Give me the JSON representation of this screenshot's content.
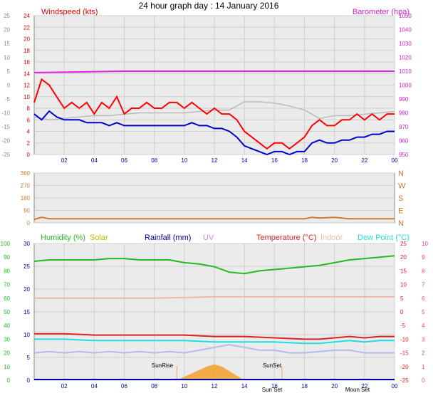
{
  "title": "24 hour graph day : 14 January 2016",
  "colors": {
    "wind_gust": "#ff0000",
    "wind_avg": "#cc1111",
    "wind_dir_trace": "#bbbbbb",
    "baro": "#e020e0",
    "wind_speed_blue": "#0000cc",
    "dir": "#d07830",
    "humidity": "#22bb22",
    "solar": "#c8b400",
    "rainfall": "#0000aa",
    "uv": "#e080d0",
    "temperature": "#dd2222",
    "indoor": "#f0b8a8",
    "dewpoint": "#22dddd",
    "sun_fill": "#f5a02a",
    "sun_marker": "#f0a070",
    "axis_green": "#20c020",
    "axis_pink": "#e040a0",
    "axis_blue": "#0000aa"
  },
  "chart_data": [
    {
      "type": "line",
      "panel": "wind",
      "left_label": "Windspeed (kts)",
      "right_label": "Barometer (hpa)",
      "x_ticks": [
        "02",
        "04",
        "06",
        "08",
        "10",
        "12",
        "14",
        "16",
        "18",
        "20",
        "22",
        "00"
      ],
      "x_range": [
        0,
        24
      ],
      "left_outer_ticks": [
        "25",
        "20",
        "15",
        "10",
        "5",
        "0",
        "-5",
        "-10",
        "-15",
        "-20",
        "-25"
      ],
      "left_outer_range": [
        -25,
        25
      ],
      "left_inner_ticks": [
        "24",
        "22",
        "20",
        "18",
        "16",
        "14",
        "12",
        "10",
        "8",
        "6",
        "4",
        "2",
        "0"
      ],
      "left_inner_range": [
        0,
        24
      ],
      "right_ticks": [
        "1050",
        "1040",
        "1030",
        "1020",
        "1010",
        "1000",
        "990",
        "980",
        "970",
        "960",
        "950"
      ],
      "right_range": [
        950,
        1050
      ],
      "series": [
        {
          "id": "dir_trace",
          "color_key": "wind_dir_trace",
          "x": [
            0,
            1,
            2,
            3,
            4,
            5,
            6,
            7,
            8,
            9,
            10,
            11,
            12,
            13,
            14,
            15,
            16,
            17,
            18,
            19,
            20,
            21,
            22,
            23,
            24
          ],
          "y": [
            -11.5,
            -12.5,
            -12,
            -11.5,
            -11,
            -11,
            -10.5,
            -10,
            -10,
            -10,
            -10,
            -9.5,
            -9,
            -9,
            -6,
            -6,
            -6.5,
            -7.5,
            -9,
            -12,
            -11,
            -11,
            -10.5,
            -10,
            -9.5
          ]
        },
        {
          "id": "gust",
          "color_key": "wind_gust",
          "x": [
            0,
            0.5,
            1,
            1.5,
            2,
            2.5,
            3,
            3.5,
            4,
            4.5,
            5,
            5.5,
            6,
            6.5,
            7,
            7.5,
            8,
            8.5,
            9,
            9.5,
            10,
            10.5,
            11,
            11.5,
            12,
            12.5,
            13,
            13.5,
            14,
            14.5,
            15,
            15.5,
            16,
            16.5,
            17,
            17.5,
            18,
            18.5,
            19,
            19.5,
            20,
            20.5,
            21,
            21.5,
            22,
            22.5,
            23,
            23.5,
            24
          ],
          "y": [
            9,
            13,
            12,
            10,
            8,
            9,
            8,
            9,
            7,
            9,
            8,
            10,
            7,
            8,
            8,
            9,
            8,
            8,
            9,
            9,
            8,
            9,
            8,
            7,
            8,
            7,
            7,
            6,
            4,
            3,
            2,
            1,
            2,
            2,
            1,
            2,
            3,
            5,
            6,
            5,
            5,
            6,
            6,
            7,
            6,
            7,
            6,
            7,
            7
          ]
        },
        {
          "id": "avg",
          "color_key": "wind_speed_blue",
          "x": [
            0,
            0.5,
            1,
            1.5,
            2,
            2.5,
            3,
            3.5,
            4,
            4.5,
            5,
            5.5,
            6,
            6.5,
            7,
            7.5,
            8,
            8.5,
            9,
            9.5,
            10,
            10.5,
            11,
            11.5,
            12,
            12.5,
            13,
            13.5,
            14,
            14.5,
            15,
            15.5,
            16,
            16.5,
            17,
            17.5,
            18,
            18.5,
            19,
            19.5,
            20,
            20.5,
            21,
            21.5,
            22,
            22.5,
            23,
            23.5,
            24
          ],
          "y": [
            7,
            6,
            7.5,
            6.5,
            6,
            6,
            6,
            5.5,
            5.5,
            5.5,
            5,
            5.5,
            5,
            5,
            5,
            5,
            5,
            5,
            5,
            5,
            5,
            5.5,
            5,
            5,
            4.5,
            4.5,
            4,
            3,
            1.5,
            1,
            0.5,
            0,
            0.5,
            0.5,
            0,
            0.5,
            0.5,
            2,
            2.5,
            2,
            2,
            2.5,
            2.5,
            3,
            3,
            3.5,
            3.5,
            4,
            4
          ]
        },
        {
          "id": "baro",
          "color_key": "baro",
          "x": [
            0,
            3,
            6,
            9,
            12,
            15,
            18,
            21,
            24
          ],
          "y": [
            1009,
            1009.5,
            1010,
            1010,
            1010,
            1010,
            1010,
            1010,
            1010
          ]
        }
      ]
    },
    {
      "type": "line",
      "panel": "direction",
      "x_ticks": [],
      "x_range": [
        0,
        24
      ],
      "left_ticks": [
        "360",
        "270",
        "180",
        "90",
        "0"
      ],
      "left_range": [
        0,
        360
      ],
      "right_labels": [
        "N",
        "W",
        "S",
        "E",
        "N"
      ],
      "series": [
        {
          "id": "direction",
          "color_key": "dir",
          "x": [
            0,
            0.5,
            1,
            2,
            4,
            6,
            8,
            10,
            12,
            14,
            16,
            18,
            18.5,
            19,
            20,
            21,
            22,
            23,
            24
          ],
          "y": [
            25,
            40,
            30,
            30,
            30,
            30,
            30,
            30,
            30,
            30,
            30,
            30,
            40,
            35,
            40,
            30,
            30,
            30,
            30
          ]
        }
      ]
    },
    {
      "type": "line",
      "panel": "temperature",
      "legend": {
        "humidity": "Humidity (%)",
        "solar": "Solar",
        "rainfall": "Rainfall (mm)",
        "uv": "UV",
        "temperature": "Temperature (°C)",
        "indoor": "Indoor",
        "dewpoint": "Dew Point (°C)"
      },
      "x_ticks": [
        "02",
        "04",
        "06",
        "08",
        "10",
        "12",
        "14",
        "16",
        "18",
        "20",
        "22",
        "00"
      ],
      "x_range": [
        0,
        24
      ],
      "humidity_ticks": [
        "100",
        "90",
        "80",
        "70",
        "60",
        "50",
        "40",
        "30",
        "20",
        "10",
        "0"
      ],
      "humidity_range": [
        0,
        100
      ],
      "rain_ticks": [
        "30",
        "25",
        "20",
        "15",
        "10",
        "5",
        "0"
      ],
      "rain_range": [
        0,
        30
      ],
      "temp_ticks": [
        "25",
        "20",
        "15",
        "10",
        "5",
        "0",
        "-5",
        "-10",
        "-15",
        "-20",
        "-25"
      ],
      "temp_range": [
        -25,
        25
      ],
      "uv_ticks": [
        "10",
        "9",
        "8",
        "7",
        "6",
        "5",
        "4",
        "3",
        "2",
        "1",
        "0"
      ],
      "uv_range": [
        0,
        10
      ],
      "sun_markers": [
        "SunRise",
        "SunSet",
        "Sun Set",
        "Moon Set"
      ],
      "series": [
        {
          "id": "humidity",
          "color_key": "humidity",
          "scale": "humidity",
          "x": [
            0,
            1,
            2,
            3,
            4,
            5,
            6,
            7,
            8,
            9,
            10,
            11,
            12,
            13,
            14,
            15,
            16,
            17,
            18,
            19,
            20,
            21,
            22,
            23,
            24
          ],
          "y": [
            87,
            88,
            88,
            88,
            88,
            89,
            89,
            88,
            88,
            88,
            86,
            85,
            83,
            79,
            78,
            80,
            81,
            82,
            83,
            84,
            86,
            88,
            89,
            90,
            91
          ]
        },
        {
          "id": "indoor",
          "color_key": "indoor",
          "scale": "temp",
          "x": [
            0,
            4,
            8,
            12,
            16,
            20,
            24
          ],
          "y": [
            5,
            5,
            5,
            5.5,
            5.5,
            5.5,
            5.5
          ]
        },
        {
          "id": "temperature",
          "color_key": "temperature",
          "scale": "temp",
          "x": [
            0,
            2,
            4,
            6,
            8,
            10,
            12,
            14,
            16,
            18,
            19,
            20,
            21,
            22,
            23,
            24
          ],
          "y": [
            -8,
            -8,
            -8.5,
            -8.5,
            -8.5,
            -8.5,
            -9,
            -9,
            -9.5,
            -10,
            -10,
            -9.5,
            -9,
            -9.5,
            -9,
            -9
          ]
        },
        {
          "id": "dewpoint",
          "color_key": "dewpoint",
          "scale": "temp",
          "x": [
            0,
            2,
            4,
            6,
            8,
            10,
            12,
            14,
            16,
            18,
            19,
            20,
            21,
            22,
            23,
            24
          ],
          "y": [
            -10,
            -10,
            -10.5,
            -10.5,
            -10.5,
            -10.5,
            -11,
            -11,
            -11,
            -11.5,
            -11.5,
            -11,
            -10.5,
            -11,
            -10.5,
            -10.5
          ]
        },
        {
          "id": "uv_lilac",
          "color_key": "uv",
          "scale": "temp",
          "x": [
            0,
            1,
            2,
            3,
            4,
            5,
            6,
            7,
            8,
            9,
            10,
            11,
            12,
            13,
            14,
            15,
            16,
            17,
            18,
            19,
            20,
            21,
            22,
            23,
            24
          ],
          "y": [
            -15,
            -14.5,
            -15,
            -14.5,
            -15,
            -14.5,
            -15,
            -14.5,
            -15,
            -14.5,
            -15,
            -14,
            -13,
            -12,
            -13,
            -14,
            -14,
            -15,
            -15,
            -14.5,
            -14,
            -14,
            -15,
            -15,
            -15
          ]
        },
        {
          "id": "solar",
          "color_key": "sun_fill",
          "scale": "rain",
          "x": [
            9.5,
            10.5,
            11.5,
            12,
            12.5,
            13,
            13.5,
            14
          ],
          "y": [
            0,
            1.5,
            3,
            3.5,
            3,
            2,
            1,
            0
          ]
        }
      ]
    }
  ]
}
